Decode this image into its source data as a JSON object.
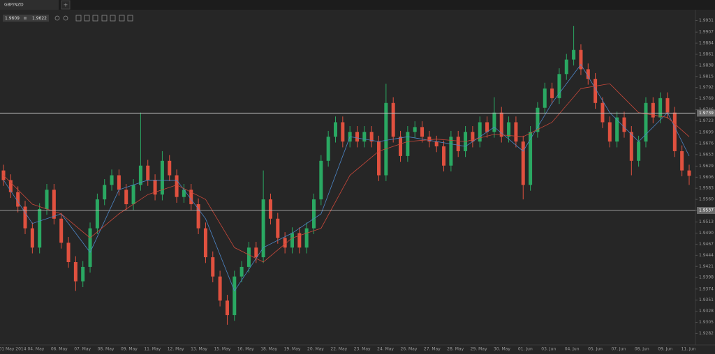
{
  "ui": {
    "tab": "GBP/NZD",
    "add_tab": "+",
    "bid": "1.9609",
    "ask": "1.9622"
  },
  "chart_data": {
    "type": "candlestick",
    "up_color": "#2aa862",
    "down_color": "#e0513f",
    "open": [
      1.962,
      1.96,
      1.9575,
      1.9545,
      1.95,
      1.946,
      1.954,
      1.958,
      1.952,
      1.947,
      1.943,
      1.939,
      1.942,
      1.95,
      1.956,
      1.959,
      1.961,
      1.958,
      1.955,
      1.959,
      1.963,
      1.96,
      1.957,
      1.964,
      1.961,
      1.9565,
      1.958,
      1.955,
      1.95,
      1.944,
      1.94,
      1.935,
      1.932,
      1.94,
      1.942,
      1.946,
      1.944,
      1.956,
      1.952,
      1.948,
      1.946,
      1.949,
      1.946,
      1.95,
      1.956,
      1.964,
      1.969,
      1.972,
      1.968,
      1.97,
      1.968,
      1.97,
      1.968,
      1.961,
      1.976,
      1.969,
      1.965,
      1.97,
      1.971,
      1.969,
      1.968,
      1.967,
      1.963,
      1.969,
      1.966,
      1.97,
      1.968,
      1.972,
      1.97,
      1.974,
      1.969,
      1.972,
      1.968,
      1.959,
      1.97,
      1.975,
      1.979,
      1.977,
      1.982,
      1.985,
      1.987,
      1.983,
      1.981,
      1.976,
      1.972,
      1.968,
      1.973,
      1.97,
      1.964,
      1.968,
      1.976,
      1.973,
      1.977,
      1.974,
      1.966,
      1.962
    ],
    "high": [
      1.9632,
      1.9612,
      1.9587,
      1.9557,
      1.9512,
      1.9552,
      1.9592,
      1.9592,
      1.9532,
      1.9482,
      1.9442,
      1.9432,
      1.9512,
      1.9572,
      1.9602,
      1.9622,
      1.9622,
      1.9592,
      1.9602,
      1.974,
      1.9642,
      1.9612,
      1.966,
      1.9652,
      1.9622,
      1.9592,
      1.9592,
      1.9562,
      1.9512,
      1.9452,
      1.9412,
      1.9362,
      1.9412,
      1.9432,
      1.9472,
      1.9472,
      1.962,
      1.9572,
      1.9532,
      1.9492,
      1.9502,
      1.9502,
      1.9512,
      1.9572,
      1.9652,
      1.9702,
      1.9732,
      1.9732,
      1.9712,
      1.9712,
      1.9712,
      1.9712,
      1.9692,
      1.98,
      1.9772,
      1.9702,
      1.9712,
      1.9722,
      1.9722,
      1.9702,
      1.9692,
      1.9682,
      1.9702,
      1.9702,
      1.9712,
      1.9712,
      1.9732,
      1.9732,
      1.9772,
      1.9752,
      1.9732,
      1.9732,
      1.9692,
      1.9712,
      1.9762,
      1.9802,
      1.9802,
      1.9832,
      1.9862,
      1.992,
      1.9882,
      1.9842,
      1.9822,
      1.9772,
      1.9732,
      1.9742,
      1.9742,
      1.9712,
      1.9692,
      1.9772,
      1.9772,
      1.9782,
      1.9782,
      1.9752,
      1.9672,
      1.9632
    ],
    "low": [
      1.9588,
      1.9563,
      1.9533,
      1.9488,
      1.9448,
      1.9448,
      1.9528,
      1.9508,
      1.9458,
      1.9418,
      1.937,
      1.9378,
      1.9408,
      1.9488,
      1.9548,
      1.9578,
      1.9568,
      1.9538,
      1.9538,
      1.9578,
      1.9588,
      1.9558,
      1.9558,
      1.9598,
      1.9553,
      1.9553,
      1.9538,
      1.9488,
      1.9428,
      1.9388,
      1.9338,
      1.93,
      1.9308,
      1.9388,
      1.9408,
      1.9428,
      1.9428,
      1.9508,
      1.9468,
      1.9448,
      1.9448,
      1.9448,
      1.9448,
      1.9488,
      1.9548,
      1.9628,
      1.9678,
      1.9668,
      1.9668,
      1.9668,
      1.9668,
      1.9668,
      1.9598,
      1.9598,
      1.9678,
      1.9638,
      1.9638,
      1.9688,
      1.9678,
      1.9668,
      1.9658,
      1.9618,
      1.9618,
      1.9648,
      1.9648,
      1.9668,
      1.9668,
      1.9688,
      1.9688,
      1.9678,
      1.9678,
      1.9668,
      1.956,
      1.9578,
      1.9688,
      1.9738,
      1.9758,
      1.9758,
      1.9808,
      1.9838,
      1.9818,
      1.9798,
      1.9748,
      1.9708,
      1.9668,
      1.9668,
      1.9688,
      1.961,
      1.9628,
      1.9668,
      1.9718,
      1.9718,
      1.9728,
      1.9648,
      1.9608,
      1.959
    ],
    "close": [
      1.96,
      1.9575,
      1.9545,
      1.95,
      1.946,
      1.954,
      1.958,
      1.952,
      1.947,
      1.943,
      1.939,
      1.942,
      1.95,
      1.956,
      1.959,
      1.961,
      1.958,
      1.955,
      1.959,
      1.963,
      1.96,
      1.957,
      1.964,
      1.961,
      1.9565,
      1.958,
      1.955,
      1.95,
      1.944,
      1.94,
      1.935,
      1.932,
      1.94,
      1.942,
      1.946,
      1.944,
      1.956,
      1.952,
      1.948,
      1.946,
      1.949,
      1.946,
      1.95,
      1.956,
      1.964,
      1.969,
      1.972,
      1.968,
      1.97,
      1.968,
      1.97,
      1.968,
      1.961,
      1.976,
      1.969,
      1.965,
      1.97,
      1.971,
      1.969,
      1.968,
      1.967,
      1.963,
      1.969,
      1.966,
      1.97,
      1.968,
      1.972,
      1.97,
      1.974,
      1.969,
      1.972,
      1.968,
      1.959,
      1.97,
      1.975,
      1.979,
      1.977,
      1.982,
      1.985,
      1.987,
      1.983,
      1.981,
      1.976,
      1.972,
      1.968,
      1.973,
      1.97,
      1.964,
      1.968,
      1.976,
      1.973,
      1.977,
      1.974,
      1.966,
      1.962,
      1.9609
    ],
    "overlays": [
      {
        "color": "#4d86c6",
        "x": [
          0,
          4,
          8,
          12,
          16,
          20,
          24,
          28,
          32,
          36,
          40,
          44,
          48,
          52,
          56,
          60,
          64,
          68,
          72,
          76,
          80,
          84,
          88,
          92,
          95
        ],
        "values": [
          1.96,
          1.951,
          1.953,
          1.945,
          1.958,
          1.96,
          1.96,
          1.952,
          1.937,
          1.946,
          1.949,
          1.953,
          1.969,
          1.968,
          1.969,
          1.968,
          1.967,
          1.971,
          1.966,
          1.976,
          1.984,
          1.974,
          1.968,
          1.974,
          1.965
        ]
      },
      {
        "color": "#c9483a",
        "x": [
          0,
          4,
          8,
          12,
          16,
          20,
          24,
          28,
          32,
          36,
          40,
          44,
          48,
          52,
          56,
          60,
          64,
          68,
          72,
          76,
          80,
          84,
          88,
          92,
          95
        ],
        "values": [
          1.961,
          1.955,
          1.953,
          1.948,
          1.953,
          1.957,
          1.959,
          1.956,
          1.946,
          1.943,
          1.948,
          1.95,
          1.961,
          1.966,
          1.968,
          1.9685,
          1.968,
          1.9695,
          1.969,
          1.972,
          1.979,
          1.98,
          1.974,
          1.973,
          1.969
        ]
      }
    ],
    "ylim": [
      1.9258,
      1.9952
    ],
    "yticks": [
      1.9931,
      1.9907,
      1.9884,
      1.9861,
      1.9838,
      1.9815,
      1.9792,
      1.9769,
      1.9746,
      1.9723,
      1.9699,
      1.9676,
      1.9653,
      1.9629,
      1.9606,
      1.9583,
      {
        "value": 1.956,
        "label": "1.9560"
      },
      1.9537,
      1.9513,
      {
        "value": 1.949,
        "label": "1.9490"
      },
      1.9467,
      1.9444,
      1.9421,
      1.9398,
      1.9374,
      1.9351,
      1.9328,
      1.9305,
      1.9282
    ],
    "hlines": [
      1.9739,
      1.9537
    ],
    "date_labels": [
      "01 May 2014",
      "04. May",
      "06. May",
      "07. May",
      "08. May",
      "09. May",
      "11. May",
      "12. May",
      "13. May",
      "15. May",
      "16. May",
      "18. May",
      "19. May",
      "20. May",
      "22. May",
      "23. May",
      "24. May",
      "26. May",
      "27. May",
      "28. May",
      "29. May",
      "30. May",
      "01. Jun",
      "03. Jun",
      "04. Jun",
      "05. Jun",
      "07. Jun",
      "08. Jun",
      "09. Jun",
      "11. Jun"
    ]
  }
}
